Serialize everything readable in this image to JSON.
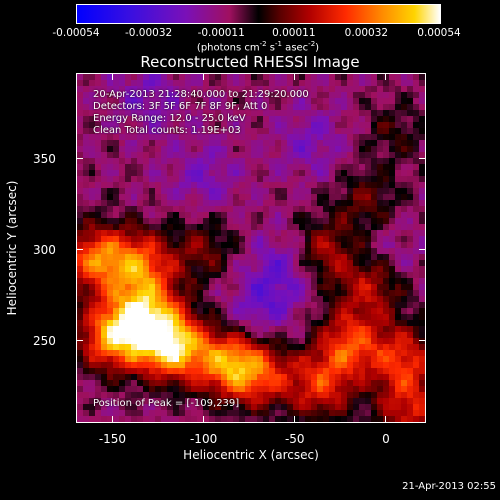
{
  "chart_data": {
    "type": "heatmap",
    "title": "Reconstructed RHESSI Image",
    "xlabel": "Heliocentric X (arcsec)",
    "ylabel": "Heliocentric Y (arcsec)",
    "xlim": [
      -170,
      22
    ],
    "ylim": [
      205,
      397
    ],
    "x_ticks": [
      -150,
      -100,
      -50,
      0
    ],
    "y_ticks": [
      250,
      300,
      350
    ],
    "colorbar": {
      "ticks": [
        "-0.00054",
        "-0.00032",
        "-0.00011",
        "0.00011",
        "0.00032",
        "0.00054"
      ],
      "range": [
        -0.00054,
        0.00054
      ],
      "unit_parts": [
        "(photons cm",
        "-2",
        " s",
        "-1",
        " asec",
        "-2",
        ")"
      ]
    },
    "annotations": [
      "20-Apr-2013 21:28:40.000 to 21:29:20.000",
      "Detectors: 3F 5F 6F 7F 8F 9F, Att 0",
      "Energy Range: 12.0 - 25.0 keV",
      "Clean     Total counts: 1.19E+03"
    ],
    "peak_label": "Position of Peak = [-109,239]",
    "peak_position": [
      -109,
      239
    ],
    "hot_regions": [
      {
        "x": -118,
        "y": 247,
        "intensity": 1.0
      },
      {
        "x": -150,
        "y": 252,
        "intensity": 0.85
      },
      {
        "x": -132,
        "y": 265,
        "intensity": 0.75
      },
      {
        "x": -160,
        "y": 295,
        "intensity": 0.7
      },
      {
        "x": -135,
        "y": 292,
        "intensity": 0.65
      },
      {
        "x": -88,
        "y": 238,
        "intensity": 0.7
      },
      {
        "x": -70,
        "y": 232,
        "intensity": 0.6
      },
      {
        "x": -36,
        "y": 225,
        "intensity": 0.55
      },
      {
        "x": -20,
        "y": 248,
        "intensity": 0.6
      },
      {
        "x": 10,
        "y": 240,
        "intensity": 0.55
      },
      {
        "x": 14,
        "y": 212,
        "intensity": 0.5
      },
      {
        "x": -8,
        "y": 280,
        "intensity": 0.45
      },
      {
        "x": -35,
        "y": 298,
        "intensity": 0.45
      },
      {
        "x": -10,
        "y": 325,
        "intensity": 0.3
      },
      {
        "x": -100,
        "y": 300,
        "intensity": 0.3
      },
      {
        "x": 5,
        "y": 365,
        "intensity": 0.2
      }
    ],
    "cold_regions": [
      {
        "x": -55,
        "y": 290,
        "intensity": 0.8
      },
      {
        "x": -70,
        "y": 265,
        "intensity": 0.6
      },
      {
        "x": -100,
        "y": 340,
        "intensity": 0.5
      },
      {
        "x": -40,
        "y": 360,
        "intensity": 0.5
      },
      {
        "x": -130,
        "y": 385,
        "intensity": 0.5
      },
      {
        "x": 0,
        "y": 300,
        "intensity": 0.4
      }
    ]
  },
  "footer_timestamp": "21-Apr-2013 02:55"
}
